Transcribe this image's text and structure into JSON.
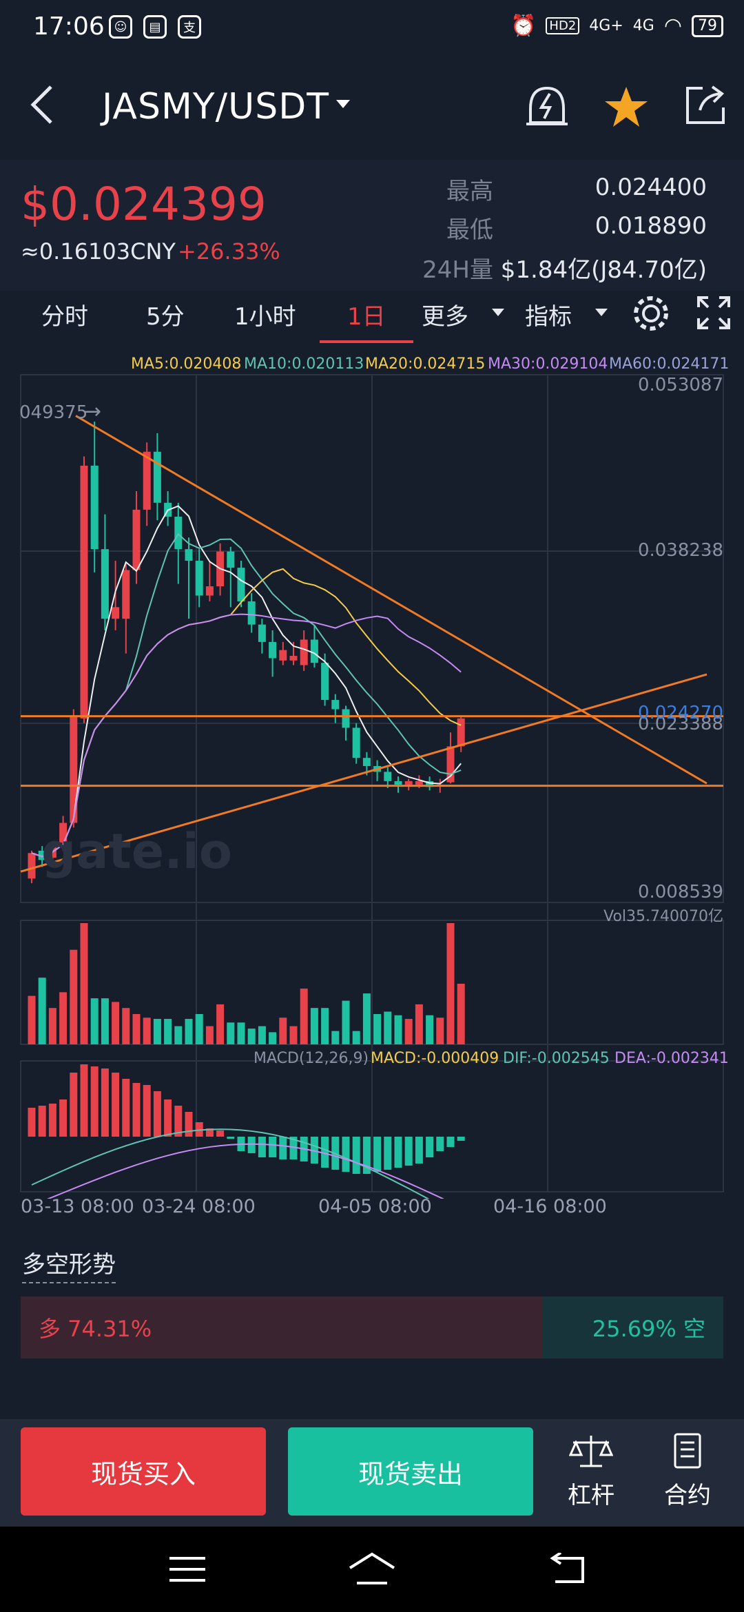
{
  "status": {
    "time": "17:06",
    "battery": "79",
    "net1": "4G+",
    "net2": "4G",
    "hd": "HD2"
  },
  "header": {
    "pair": "JASMY/USDT"
  },
  "ticker": {
    "price": "$0.024399",
    "cny": "≈0.16103CNY",
    "change": "+26.33%",
    "high_label": "最高",
    "high": "0.024400",
    "low_label": "最低",
    "low": "0.018890",
    "vol_label": "24H量",
    "vol": "$1.84亿(J84.70亿)"
  },
  "tabs": {
    "t1": "分时",
    "t2": "5分",
    "t3": "1小时",
    "t4": "1日",
    "t5": "更多",
    "t6": "指标"
  },
  "ma": {
    "ma5": "MA5:0.020408",
    "ma10": "MA10:0.020113",
    "ma20": "MA20:0.024715",
    "ma30": "MA30:0.029104",
    "ma60": "MA60:0.024171"
  },
  "colors": {
    "up": "#e8424b",
    "down": "#1ec2a3",
    "ma5": "#f0f0f0",
    "ma10": "#5fc4b4",
    "ma20": "#f5cc4a",
    "ma30": "#c58bf2",
    "ma60": "#9aa3d8",
    "trend": "#f07b22"
  },
  "chart_data": {
    "type": "candlestick",
    "y_ticks": [
      "0.053087",
      "0.038238",
      "0.023388",
      "0.008539"
    ],
    "last_price_tag": "0.024270",
    "high_marker": "049375",
    "watermark": "gate.io",
    "x_ticks": [
      "03-13 08:00",
      "03-24 08:00",
      "04-05 08:00",
      "04-16 08:00"
    ],
    "volume_label": "Vol35.740070亿",
    "macd": {
      "label": "MACD(12,26,9)",
      "macd": "MACD:-0.000409",
      "dif": "DIF:-0.002545",
      "dea": "DEA:-0.002341"
    },
    "candles": [
      {
        "o": 0.0106,
        "c": 0.0128,
        "h": 0.013,
        "l": 0.0102
      },
      {
        "o": 0.013,
        "c": 0.0122,
        "h": 0.0134,
        "l": 0.0116
      },
      {
        "o": 0.0124,
        "c": 0.0137,
        "h": 0.0138,
        "l": 0.012
      },
      {
        "o": 0.0137,
        "c": 0.0154,
        "h": 0.016,
        "l": 0.013
      },
      {
        "o": 0.0154,
        "c": 0.0246,
        "h": 0.0252,
        "l": 0.015
      },
      {
        "o": 0.0244,
        "c": 0.0462,
        "h": 0.047,
        "l": 0.024
      },
      {
        "o": 0.0462,
        "c": 0.039,
        "h": 0.05,
        "l": 0.037
      },
      {
        "o": 0.039,
        "c": 0.033,
        "h": 0.042,
        "l": 0.032
      },
      {
        "o": 0.033,
        "c": 0.034,
        "h": 0.038,
        "l": 0.032
      },
      {
        "o": 0.033,
        "c": 0.0372,
        "h": 0.0378,
        "l": 0.03
      },
      {
        "o": 0.0372,
        "c": 0.0424,
        "h": 0.044,
        "l": 0.036
      },
      {
        "o": 0.0424,
        "c": 0.0474,
        "h": 0.0482,
        "l": 0.041
      },
      {
        "o": 0.0474,
        "c": 0.043,
        "h": 0.049,
        "l": 0.0415
      },
      {
        "o": 0.043,
        "c": 0.0418,
        "h": 0.044,
        "l": 0.041
      },
      {
        "o": 0.0418,
        "c": 0.039,
        "h": 0.043,
        "l": 0.036
      },
      {
        "o": 0.039,
        "c": 0.038,
        "h": 0.04,
        "l": 0.033
      },
      {
        "o": 0.038,
        "c": 0.035,
        "h": 0.039,
        "l": 0.034
      },
      {
        "o": 0.035,
        "c": 0.0358,
        "h": 0.038,
        "l": 0.0345
      },
      {
        "o": 0.0358,
        "c": 0.0388,
        "h": 0.0395,
        "l": 0.035
      },
      {
        "o": 0.0388,
        "c": 0.0374,
        "h": 0.0392,
        "l": 0.034
      },
      {
        "o": 0.0374,
        "c": 0.0345,
        "h": 0.038,
        "l": 0.034
      },
      {
        "o": 0.0345,
        "c": 0.0325,
        "h": 0.0352,
        "l": 0.0318
      },
      {
        "o": 0.0325,
        "c": 0.031,
        "h": 0.033,
        "l": 0.03
      },
      {
        "o": 0.031,
        "c": 0.0296,
        "h": 0.032,
        "l": 0.028
      },
      {
        "o": 0.0294,
        "c": 0.0303,
        "h": 0.031,
        "l": 0.029
      },
      {
        "o": 0.0294,
        "c": 0.0298,
        "h": 0.031,
        "l": 0.029
      },
      {
        "o": 0.029,
        "c": 0.0312,
        "h": 0.032,
        "l": 0.0285
      },
      {
        "o": 0.0312,
        "c": 0.0292,
        "h": 0.0325,
        "l": 0.0288
      },
      {
        "o": 0.0292,
        "c": 0.026,
        "h": 0.03,
        "l": 0.0255
      },
      {
        "o": 0.026,
        "c": 0.0252,
        "h": 0.0265,
        "l": 0.024
      },
      {
        "o": 0.0252,
        "c": 0.0236,
        "h": 0.0255,
        "l": 0.0225
      },
      {
        "o": 0.0236,
        "c": 0.021,
        "h": 0.024,
        "l": 0.0205
      },
      {
        "o": 0.021,
        "c": 0.0203,
        "h": 0.0215,
        "l": 0.0195
      },
      {
        "o": 0.0203,
        "c": 0.0198,
        "h": 0.0208,
        "l": 0.019
      },
      {
        "o": 0.0198,
        "c": 0.019,
        "h": 0.0202,
        "l": 0.0184
      },
      {
        "o": 0.019,
        "c": 0.0187,
        "h": 0.0194,
        "l": 0.018
      },
      {
        "o": 0.0187,
        "c": 0.019,
        "h": 0.0192,
        "l": 0.0182
      },
      {
        "o": 0.0187,
        "c": 0.019,
        "h": 0.0195,
        "l": 0.0184
      },
      {
        "o": 0.019,
        "c": 0.0185,
        "h": 0.0194,
        "l": 0.0182
      },
      {
        "o": 0.0186,
        "c": 0.0187,
        "h": 0.0192,
        "l": 0.018
      },
      {
        "o": 0.0189,
        "c": 0.022,
        "h": 0.0232,
        "l": 0.0188
      },
      {
        "o": 0.022,
        "c": 0.0244,
        "h": 0.0246,
        "l": 0.0215
      }
    ],
    "volumes": [
      0.4,
      0.55,
      0.3,
      0.43,
      0.78,
      1.0,
      0.38,
      0.38,
      0.35,
      0.3,
      0.25,
      0.22,
      0.21,
      0.21,
      0.15,
      0.21,
      0.25,
      0.15,
      0.33,
      0.18,
      0.18,
      0.13,
      0.15,
      0.1,
      0.22,
      0.15,
      0.46,
      0.3,
      0.3,
      0.11,
      0.36,
      0.11,
      0.42,
      0.25,
      0.27,
      0.24,
      0.21,
      0.33,
      0.24,
      0.22,
      1.0,
      0.5
    ],
    "macd_hist": [
      0.28,
      0.3,
      0.32,
      0.36,
      0.62,
      0.7,
      0.68,
      0.66,
      0.62,
      0.56,
      0.52,
      0.5,
      0.44,
      0.36,
      0.3,
      0.24,
      0.14,
      0.08,
      0.06,
      -0.02,
      -0.14,
      -0.16,
      -0.2,
      -0.2,
      -0.22,
      -0.22,
      -0.24,
      -0.26,
      -0.3,
      -0.32,
      -0.34,
      -0.36,
      -0.36,
      -0.34,
      -0.32,
      -0.3,
      -0.28,
      -0.26,
      -0.2,
      -0.14,
      -0.1,
      -0.04
    ]
  },
  "sentiment": {
    "title": "多空形势",
    "long": "多 74.31%",
    "short": "25.69% 空",
    "long_pct": 74.31
  },
  "actions": {
    "buy": "现货买入",
    "sell": "现货卖出",
    "lever": "杠杆",
    "contract": "合约"
  }
}
